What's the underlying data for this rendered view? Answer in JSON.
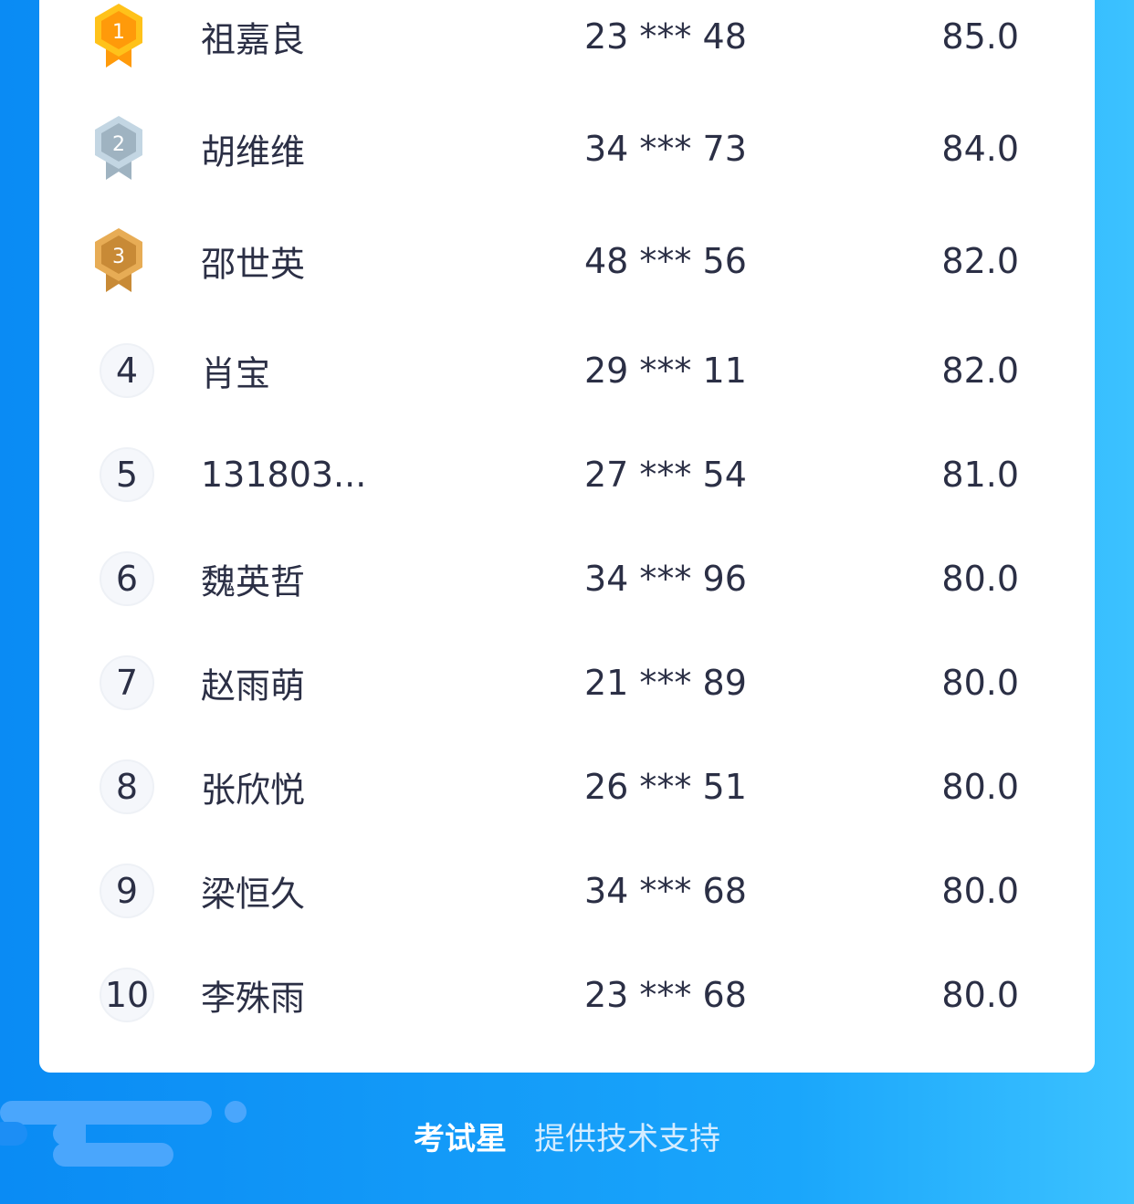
{
  "ranking": [
    {
      "rank": "1",
      "name": "祖嘉良",
      "id": "23 *** 48",
      "score": "85.0",
      "medal": "gold"
    },
    {
      "rank": "2",
      "name": "胡维维",
      "id": "34 *** 73",
      "score": "84.0",
      "medal": "silver"
    },
    {
      "rank": "3",
      "name": "邵世英",
      "id": "48 *** 56",
      "score": "82.0",
      "medal": "bronze"
    },
    {
      "rank": "4",
      "name": "肖宝",
      "id": "29 *** 11",
      "score": "82.0"
    },
    {
      "rank": "5",
      "name": "131803...",
      "id": "27 *** 54",
      "score": "81.0"
    },
    {
      "rank": "6",
      "name": "魏英哲",
      "id": "34 *** 96",
      "score": "80.0"
    },
    {
      "rank": "7",
      "name": "赵雨萌",
      "id": "21 *** 89",
      "score": "80.0"
    },
    {
      "rank": "8",
      "name": "张欣悦",
      "id": "26 *** 51",
      "score": "80.0"
    },
    {
      "rank": "9",
      "name": "梁恒久",
      "id": "34 *** 68",
      "score": "80.0"
    },
    {
      "rank": "10",
      "name": "李殊雨",
      "id": "23 *** 68",
      "score": "80.0"
    }
  ],
  "medal_colors": {
    "gold": [
      "#ffc21a",
      "#ff9a0a"
    ],
    "silver": [
      "#c3d6e3",
      "#9fb3c1"
    ],
    "bronze": [
      "#e7ac55",
      "#c88a36"
    ]
  },
  "footer": {
    "brand": "考试星",
    "tagline": "提供技术支持"
  }
}
